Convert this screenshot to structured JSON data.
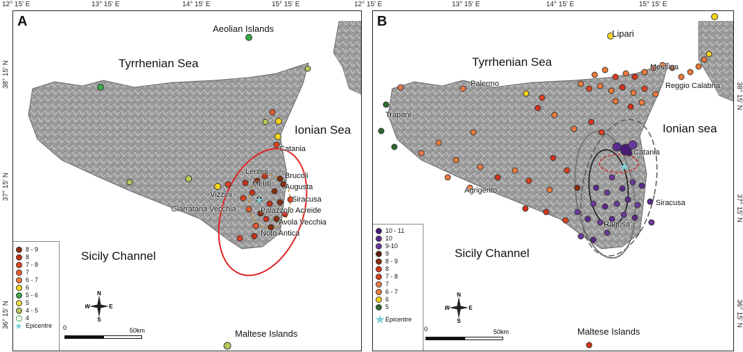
{
  "top_ticks": [
    "12° 15' E",
    "13° 15' E",
    "14° 15' E",
    "15° 15' E",
    "12° 15' E",
    "13° 15' E",
    "14° 15' E",
    "15° 15' E"
  ],
  "left_ticks": [
    "38° 15' N",
    "37° 15' N",
    "36° 15' N"
  ],
  "right_ticks": [
    "38° 15' N",
    "37° 15' N",
    "36° 15' N"
  ],
  "panelA": {
    "label": "A",
    "seas": {
      "tyrrhenian": "Tyrrhenian Sea",
      "ionian": "Ionian Sea",
      "sicily_channel": "Sicily Channel"
    },
    "places": {
      "aeolian": "Aeolian Islands",
      "catania": "Catania",
      "lentini": "Lentini",
      "brucoli": "Brucoli",
      "melilli": "Melilli",
      "augusta": "Augusta",
      "vizzini": "Vizzini",
      "siracusa": "Siracusa",
      "giarratana": "Giarratana Vecchia",
      "palazzolo": "Palazzolo Acreide",
      "avola": "Avola Vecchia",
      "noto": "Noto Antica",
      "maltese": "Maltese Islands"
    },
    "legend": [
      "8 - 9",
      "8",
      "7 - 8",
      "7",
      "6 - 7",
      "6",
      "5 - 6",
      "5",
      "4 - 5",
      "4"
    ],
    "legend_colors": [
      "#8b2d0e",
      "#c8321a",
      "#e0411f",
      "#ea5a2a",
      "#f07a3c",
      "#f7d417",
      "#3aa84a",
      "#f2e23a",
      "#b9c95a",
      "#ffffff"
    ],
    "epicentre": "Epicentre",
    "scale": {
      "zero": "0",
      "end": "50km"
    },
    "compass": {
      "n": "N",
      "s": "S",
      "e": "E",
      "w": "W"
    }
  },
  "panelB": {
    "label": "B",
    "seas": {
      "tyrrhenian": "Tyrrhenian Sea",
      "ionian": "Ionian sea",
      "sicily_channel": "Sicily Channel"
    },
    "places": {
      "lipari": "Lipari",
      "palermo": "Palermo",
      "messina": "Messina",
      "reggio": "Reggio Calabria",
      "trapani": "Trapani",
      "catania": "Catania",
      "agrigento": "Agrigento",
      "siracusa": "Siracusa",
      "ragusa": "Ragusa",
      "maltese": "Maltese Islands"
    },
    "legend": [
      "10 - 11",
      "10",
      "9-10",
      "9",
      "8 - 9",
      "8",
      "7 - 8",
      "7",
      "6 - 7",
      "6",
      "5"
    ],
    "legend_colors": [
      "#4a1b7a",
      "#5a2a8c",
      "#6a3a9c",
      "#5c1d0c",
      "#8b2d0e",
      "#d7341c",
      "#e0411f",
      "#ef7a4a",
      "#f07a3c",
      "#f7d417",
      "#2e6b2e"
    ],
    "epicentre": "Epicentre",
    "scale": {
      "zero": "0",
      "end": "50km"
    },
    "compass": {
      "n": "N",
      "s": "S",
      "e": "E",
      "w": "W"
    }
  }
}
